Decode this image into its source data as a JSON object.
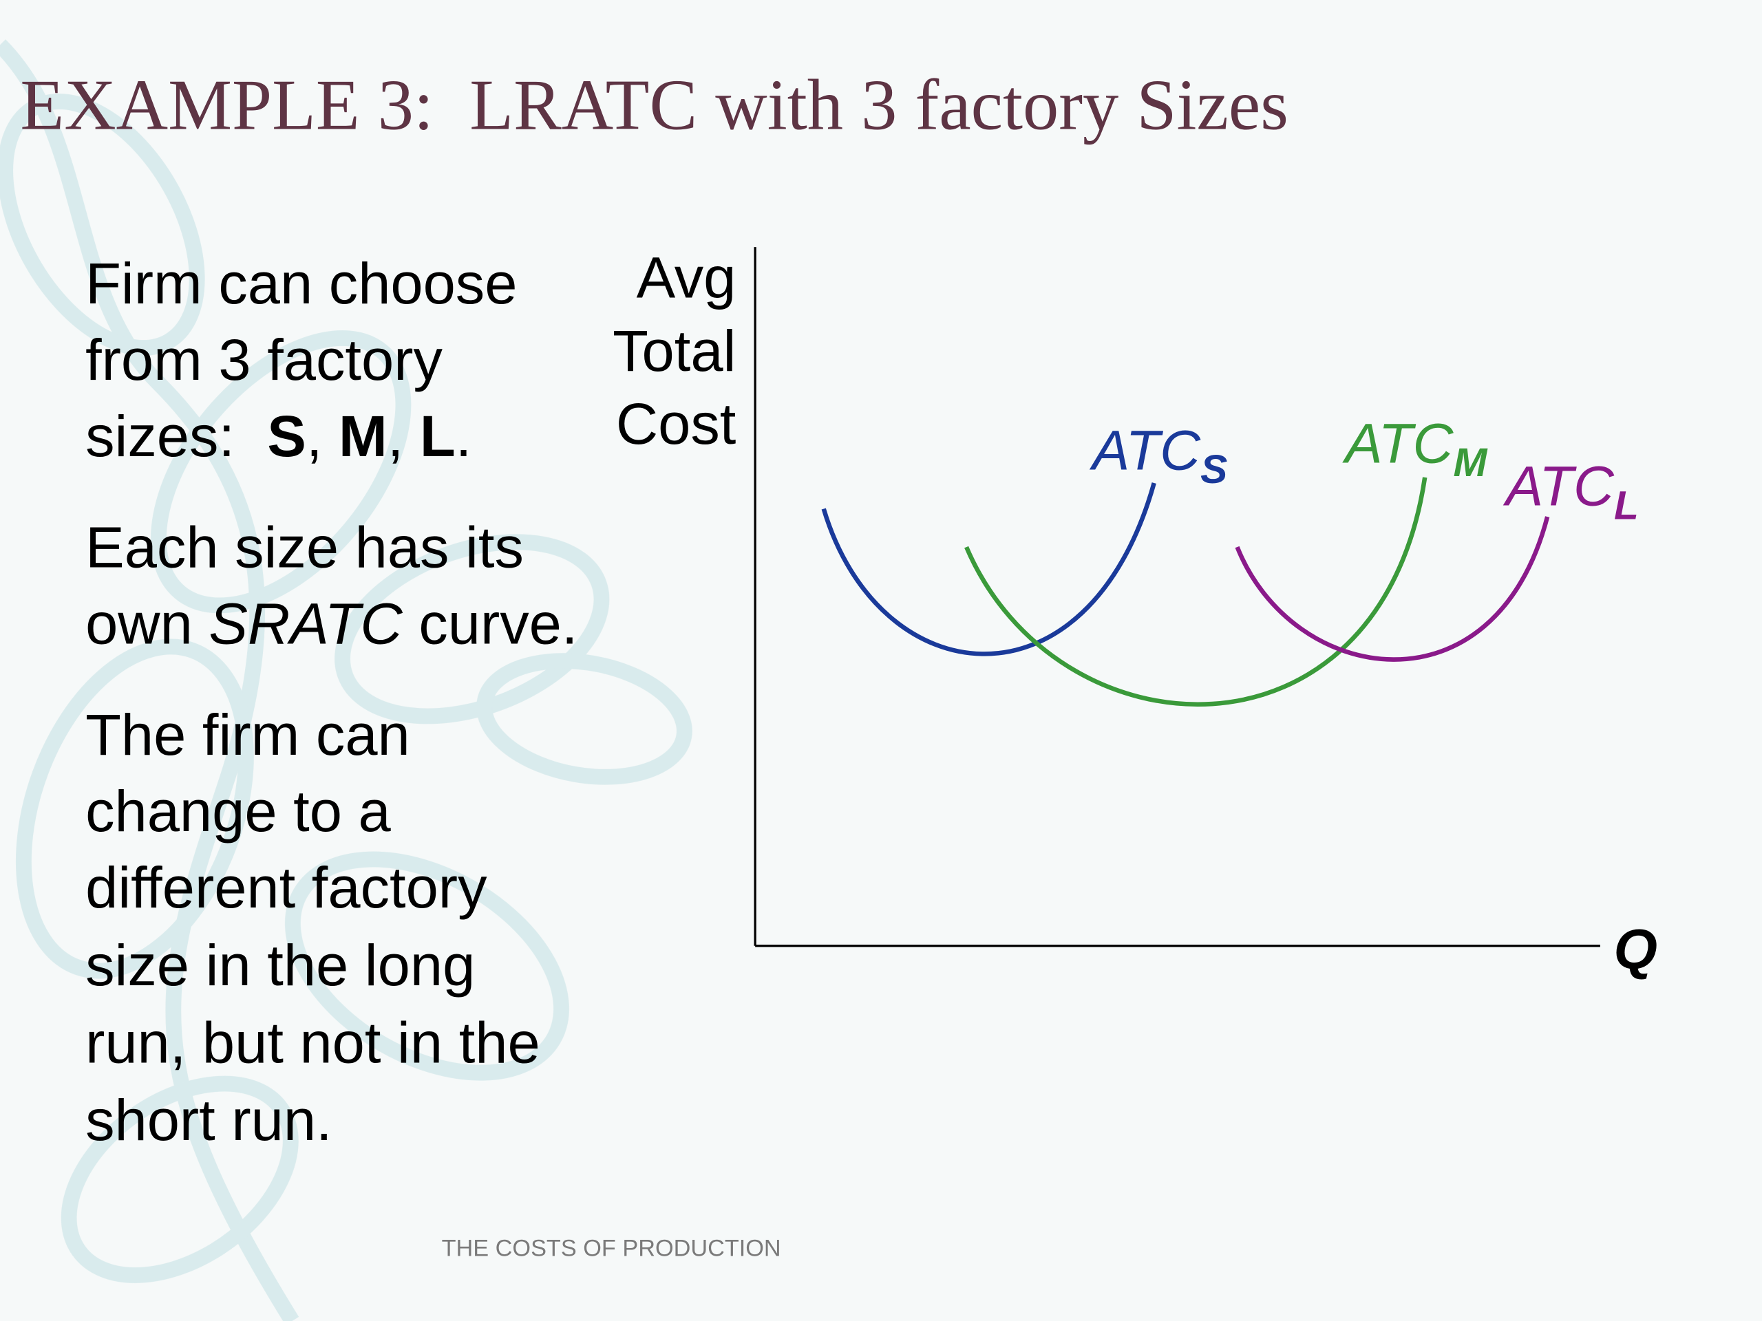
{
  "header": {
    "title": "EXAMPLE 3:  LRATC with 3 factory Sizes"
  },
  "body": [
    {
      "lines": [
        [
          "Firm can choose"
        ],
        [
          "from 3 factory"
        ],
        [
          "sizes:  ",
          "S",
          ", ",
          "M",
          ", ",
          "L",
          "."
        ]
      ]
    },
    {
      "lines": [
        [
          "Each size has its"
        ],
        [
          "own ",
          "SRATC",
          " curve."
        ]
      ]
    },
    {
      "lines": [
        [
          "The firm can"
        ],
        [
          "change to a"
        ],
        [
          "different factory"
        ],
        [
          "size in the long"
        ],
        [
          "run, but not in the"
        ],
        [
          "short run."
        ]
      ]
    }
  ],
  "diagram": {
    "y_axis_label": [
      "Avg",
      "Total",
      "Cost"
    ],
    "x_axis_label": "Q",
    "curves": [
      {
        "label": "ATC",
        "subscript": "S"
      },
      {
        "label": "ATC",
        "subscript": "M"
      },
      {
        "label": "ATC",
        "subscript": "L"
      }
    ]
  },
  "footer": "THE COSTS OF PRODUCTION"
}
